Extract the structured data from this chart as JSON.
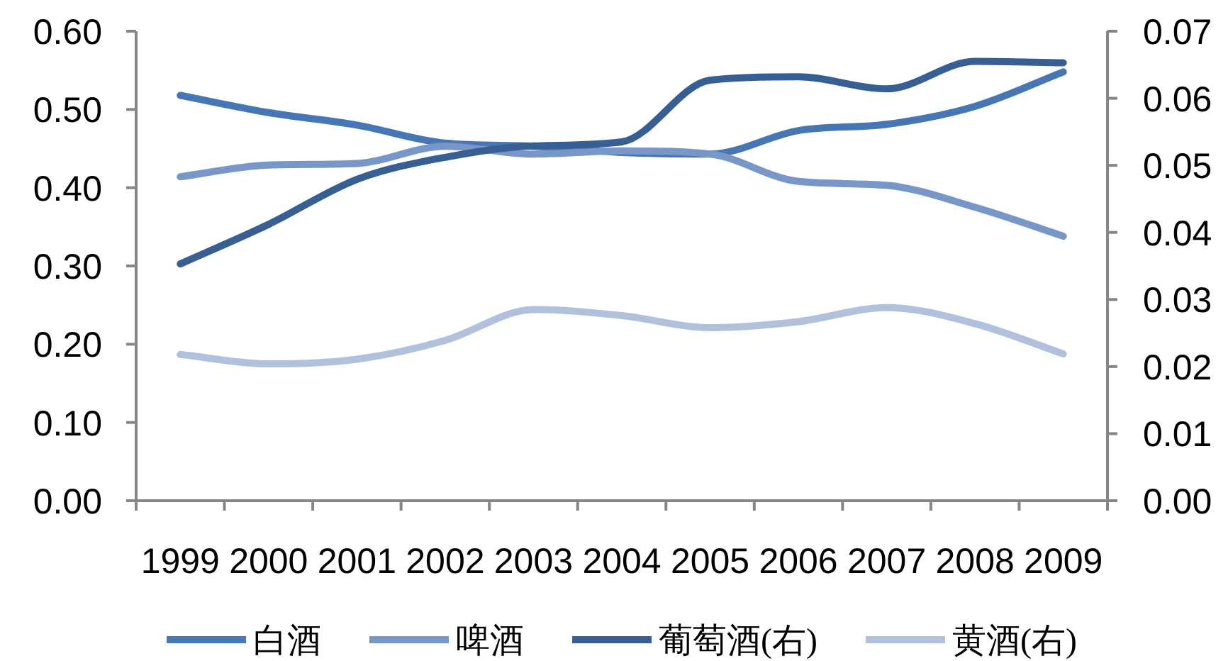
{
  "chart_data": {
    "type": "line",
    "categories": [
      "1999",
      "2000",
      "2001",
      "2002",
      "2003",
      "2004",
      "2005",
      "2006",
      "2007",
      "2008",
      "2009"
    ],
    "series": [
      {
        "name": "白酒",
        "color": "#4677b4",
        "values": [
          0.518,
          0.496,
          0.48,
          0.457,
          0.453,
          0.445,
          0.443,
          0.473,
          0.481,
          0.504,
          0.548
        ]
      },
      {
        "name": "啤酒",
        "color": "#7896c8",
        "values": [
          0.414,
          0.429,
          0.431,
          0.453,
          0.443,
          0.447,
          0.443,
          0.408,
          0.403,
          0.375,
          0.338
        ]
      },
      {
        "name": "葡萄酒(右)",
        "color": "#385f94",
        "axis": "y2",
        "values": [
          0.0353,
          0.0412,
          0.0479,
          0.0512,
          0.0529,
          0.0535,
          0.0627,
          0.0632,
          0.0614,
          0.0655,
          0.0653
        ]
      },
      {
        "name": "黄酒(右)",
        "color": "#b1c1dd",
        "axis": "y2",
        "values": [
          0.0218,
          0.0204,
          0.0211,
          0.0239,
          0.0285,
          0.0276,
          0.0258,
          0.0267,
          0.0288,
          0.0264,
          0.0219
        ]
      }
    ],
    "ylim": [
      0,
      0.6
    ],
    "yticks": [
      {
        "value": 0,
        "label": "0.00"
      },
      {
        "value": 0.1,
        "label": "0.10"
      },
      {
        "value": 0.2,
        "label": "0.20"
      },
      {
        "value": 0.3,
        "label": "0.30"
      },
      {
        "value": 0.4,
        "label": "0.40"
      },
      {
        "value": 0.5,
        "label": "0.50"
      },
      {
        "value": 0.6,
        "label": "0.60"
      }
    ],
    "y2lim": [
      0,
      0.07
    ],
    "y2ticks": [
      {
        "value": 0,
        "label": "0.00"
      },
      {
        "value": 0.01,
        "label": "0.01"
      },
      {
        "value": 0.02,
        "label": "0.02"
      },
      {
        "value": 0.03,
        "label": "0.03"
      },
      {
        "value": 0.04,
        "label": "0.04"
      },
      {
        "value": 0.05,
        "label": "0.05"
      },
      {
        "value": 0.06,
        "label": "0.06"
      },
      {
        "value": 0.07,
        "label": "0.07"
      }
    ],
    "legend": "bottom"
  }
}
